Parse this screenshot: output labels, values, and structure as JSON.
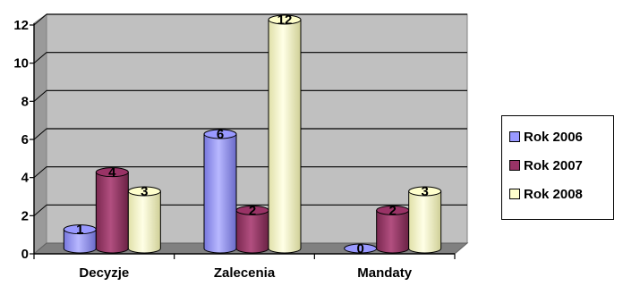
{
  "chart_data": {
    "type": "bar",
    "categories": [
      "Decyzje",
      "Zalecenia",
      "Mandaty"
    ],
    "series": [
      {
        "name": "Rok 2006",
        "values": [
          1,
          6,
          0
        ],
        "color": "#9999ff"
      },
      {
        "name": "Rok 2007",
        "values": [
          4,
          2,
          2
        ],
        "color": "#993366"
      },
      {
        "name": "Rok 2008",
        "values": [
          3,
          12,
          3
        ],
        "color": "#ffffcc"
      }
    ],
    "yticks": [
      "0",
      "2",
      "4",
      "6",
      "8",
      "10",
      "12"
    ],
    "ylim": [
      0,
      12
    ],
    "grid": true,
    "legend": "right",
    "wall_color": "#c0c0c0",
    "floor_color": "#808080"
  }
}
